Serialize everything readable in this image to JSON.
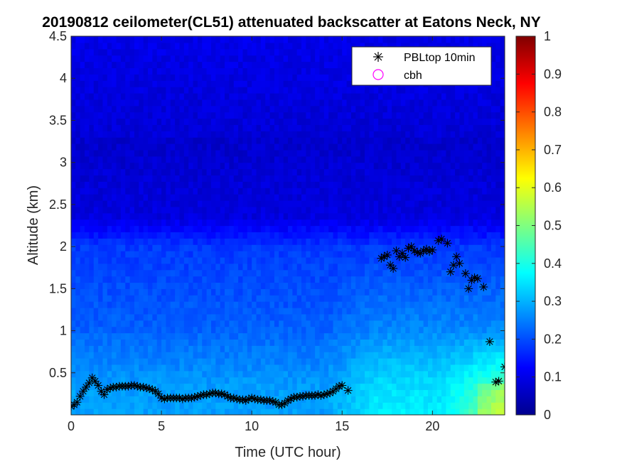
{
  "chart_data": {
    "type": "heatmap",
    "title": "20190812 ceilometer(CL51) attenuated backscatter at Eatons Neck, NY",
    "xlabel": "Time (UTC hour)",
    "ylabel": "Altitude (km)",
    "xlim": [
      0,
      24
    ],
    "ylim": [
      0,
      4.5
    ],
    "xticks": [
      0,
      5,
      10,
      15,
      20
    ],
    "xtick_labels": [
      "0",
      "5",
      "10",
      "15",
      "20"
    ],
    "yticks": [
      0.5,
      1,
      1.5,
      2,
      2.5,
      3,
      3.5,
      4,
      4.5
    ],
    "ytick_labels": [
      "0.5",
      "1",
      "1.5",
      "2",
      "2.5",
      "3",
      "3.5",
      "4",
      "4.5"
    ],
    "colorbar": {
      "range": [
        0,
        1
      ],
      "colormap": "jet",
      "ticks": [
        0,
        0.1,
        0.2,
        0.3,
        0.4,
        0.5,
        0.6,
        0.7,
        0.8,
        0.9,
        1
      ],
      "tick_labels": [
        "0",
        "0.1",
        "0.2",
        "0.3",
        "0.4",
        "0.5",
        "0.6",
        "0.7",
        "0.8",
        "0.9",
        "1"
      ]
    },
    "legend": {
      "placement": "top-right",
      "entries": [
        {
          "label": "PBLtop 10min",
          "marker": "asterisk",
          "color": "#000000"
        },
        {
          "label": "cbh",
          "marker": "circle",
          "color": "#ff00ff"
        }
      ]
    },
    "series": [
      {
        "name": "PBLtop 10min",
        "x": [
          0.0,
          0.17,
          0.33,
          0.5,
          0.67,
          0.83,
          1.0,
          1.17,
          1.33,
          1.5,
          1.67,
          1.83,
          2.0,
          2.17,
          2.33,
          2.5,
          2.67,
          2.83,
          3.0,
          3.17,
          3.33,
          3.5,
          3.67,
          3.83,
          4.0,
          4.17,
          4.33,
          4.5,
          4.67,
          4.83,
          5.0,
          5.17,
          5.33,
          5.5,
          5.67,
          5.83,
          6.0,
          6.17,
          6.33,
          6.5,
          6.67,
          6.83,
          7.0,
          7.17,
          7.33,
          7.5,
          7.67,
          7.83,
          8.0,
          8.17,
          8.33,
          8.5,
          8.67,
          8.83,
          9.0,
          9.17,
          9.33,
          9.5,
          9.67,
          9.83,
          10.0,
          10.17,
          10.33,
          10.5,
          10.67,
          10.83,
          11.0,
          11.17,
          11.33,
          11.5,
          11.67,
          11.83,
          12.0,
          12.17,
          12.33,
          12.5,
          12.67,
          12.83,
          13.0,
          13.17,
          13.33,
          13.5,
          13.67,
          13.83,
          14.0,
          14.17,
          14.33,
          14.5,
          14.67,
          14.83,
          15.0,
          15.33,
          17.17,
          17.33,
          17.5,
          17.67,
          17.83,
          18.0,
          18.17,
          18.33,
          18.5,
          18.67,
          18.83,
          19.0,
          19.17,
          19.33,
          19.5,
          19.67,
          19.83,
          20.0,
          20.33,
          20.5,
          20.83,
          21.0,
          21.17,
          21.33,
          21.5,
          21.83,
          22.0,
          22.17,
          22.33,
          22.5,
          22.83,
          23.17,
          23.5,
          23.67,
          24.0
        ],
        "y": [
          0.1,
          0.12,
          0.15,
          0.22,
          0.28,
          0.33,
          0.38,
          0.44,
          0.4,
          0.35,
          0.28,
          0.24,
          0.3,
          0.32,
          0.33,
          0.33,
          0.34,
          0.34,
          0.34,
          0.34,
          0.35,
          0.35,
          0.34,
          0.33,
          0.33,
          0.32,
          0.31,
          0.3,
          0.28,
          0.25,
          0.2,
          0.19,
          0.2,
          0.2,
          0.2,
          0.2,
          0.2,
          0.19,
          0.2,
          0.2,
          0.2,
          0.21,
          0.22,
          0.23,
          0.24,
          0.24,
          0.25,
          0.26,
          0.26,
          0.25,
          0.25,
          0.24,
          0.22,
          0.2,
          0.2,
          0.19,
          0.18,
          0.18,
          0.17,
          0.19,
          0.2,
          0.19,
          0.18,
          0.18,
          0.17,
          0.17,
          0.17,
          0.16,
          0.15,
          0.12,
          0.12,
          0.14,
          0.17,
          0.19,
          0.21,
          0.21,
          0.22,
          0.22,
          0.23,
          0.23,
          0.23,
          0.23,
          0.24,
          0.23,
          0.24,
          0.25,
          0.26,
          0.28,
          0.31,
          0.34,
          0.35,
          0.29,
          1.86,
          1.88,
          1.9,
          1.78,
          1.74,
          1.95,
          1.88,
          1.92,
          1.87,
          1.98,
          2.0,
          1.95,
          1.93,
          1.92,
          1.95,
          1.97,
          1.94,
          1.96,
          2.07,
          2.09,
          2.04,
          1.7,
          1.78,
          1.88,
          1.8,
          1.68,
          1.5,
          1.6,
          1.63,
          1.62,
          1.52,
          0.87,
          0.39,
          0.4,
          0.57
        ]
      },
      {
        "name": "cbh",
        "x": [],
        "y": []
      }
    ]
  }
}
